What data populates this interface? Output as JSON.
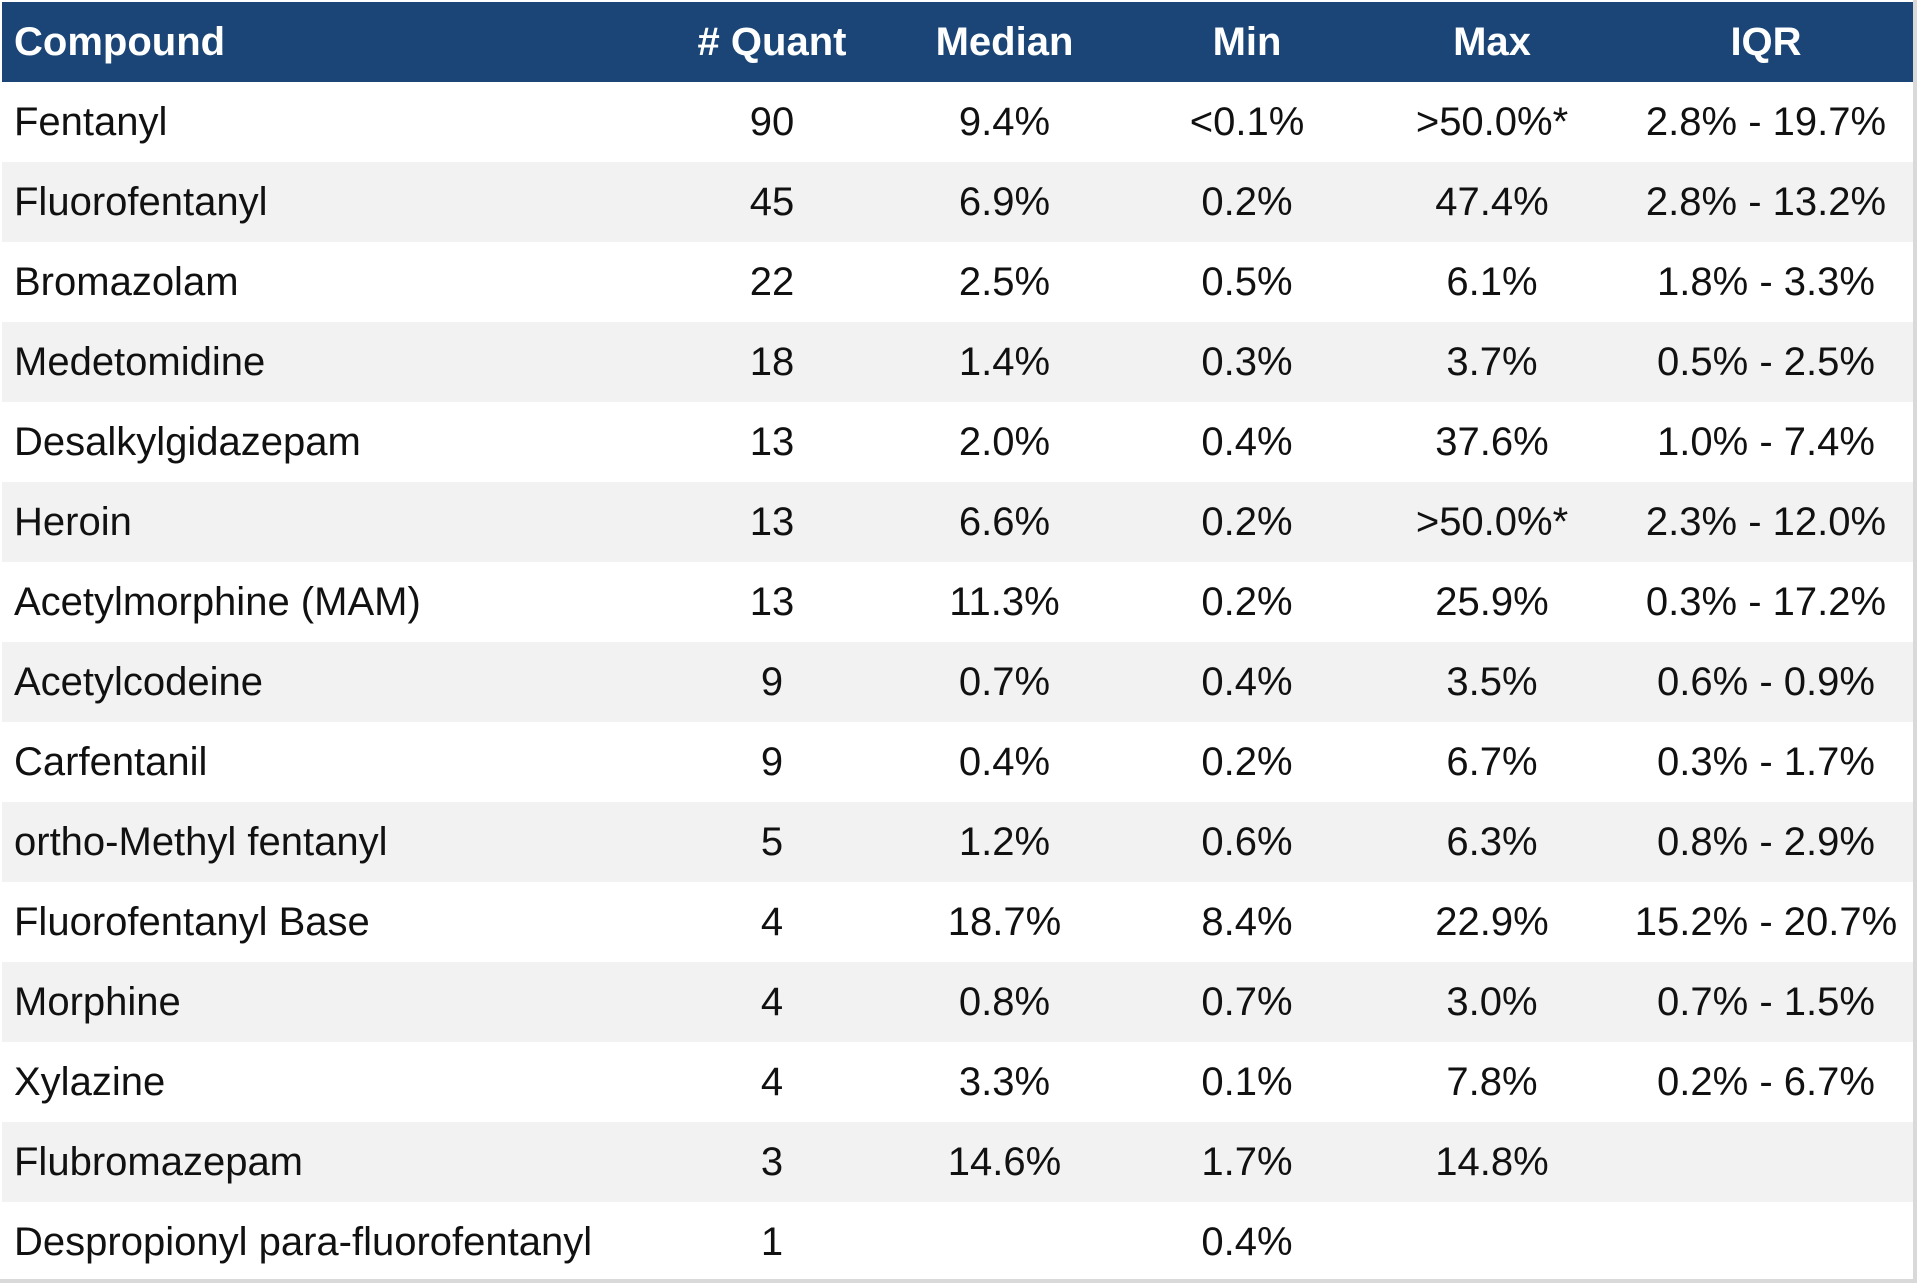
{
  "table": {
    "headers": [
      "Compound",
      "# Quant",
      "Median",
      "Min",
      "Max",
      "IQR"
    ],
    "rows": [
      [
        "Fentanyl",
        "90",
        "9.4%",
        "<0.1%",
        ">50.0%*",
        "2.8% - 19.7%"
      ],
      [
        "Fluorofentanyl",
        "45",
        "6.9%",
        "0.2%",
        "47.4%",
        "2.8% - 13.2%"
      ],
      [
        "Bromazolam",
        "22",
        "2.5%",
        "0.5%",
        "6.1%",
        "1.8% - 3.3%"
      ],
      [
        "Medetomidine",
        "18",
        "1.4%",
        "0.3%",
        "3.7%",
        "0.5% - 2.5%"
      ],
      [
        "Desalkylgidazepam",
        "13",
        "2.0%",
        "0.4%",
        "37.6%",
        "1.0% - 7.4%"
      ],
      [
        "Heroin",
        "13",
        "6.6%",
        "0.2%",
        ">50.0%*",
        "2.3% - 12.0%"
      ],
      [
        "Acetylmorphine (MAM)",
        "13",
        "11.3%",
        "0.2%",
        "25.9%",
        "0.3% - 17.2%"
      ],
      [
        "Acetylcodeine",
        "9",
        "0.7%",
        "0.4%",
        "3.5%",
        "0.6% - 0.9%"
      ],
      [
        "Carfentanil",
        "9",
        "0.4%",
        "0.2%",
        "6.7%",
        "0.3% - 1.7%"
      ],
      [
        "ortho-Methyl fentanyl",
        "5",
        "1.2%",
        "0.6%",
        "6.3%",
        "0.8% - 2.9%"
      ],
      [
        "Fluorofentanyl Base",
        "4",
        "18.7%",
        "8.4%",
        "22.9%",
        "15.2% - 20.7%"
      ],
      [
        "Morphine",
        "4",
        "0.8%",
        "0.7%",
        "3.0%",
        "0.7% - 1.5%"
      ],
      [
        "Xylazine",
        "4",
        "3.3%",
        "0.1%",
        "7.8%",
        "0.2% - 6.7%"
      ],
      [
        "Flubromazepam",
        "3",
        "14.6%",
        "1.7%",
        "14.8%",
        ""
      ],
      [
        "Despropionyl para-fluorofentanyl",
        "1",
        "",
        "0.4%",
        "",
        ""
      ]
    ]
  },
  "colors": {
    "header_background": "#1a4576",
    "header_text": "#ffffff",
    "stripe_row": "#f2f2f2",
    "plain_row": "#ffffff"
  }
}
